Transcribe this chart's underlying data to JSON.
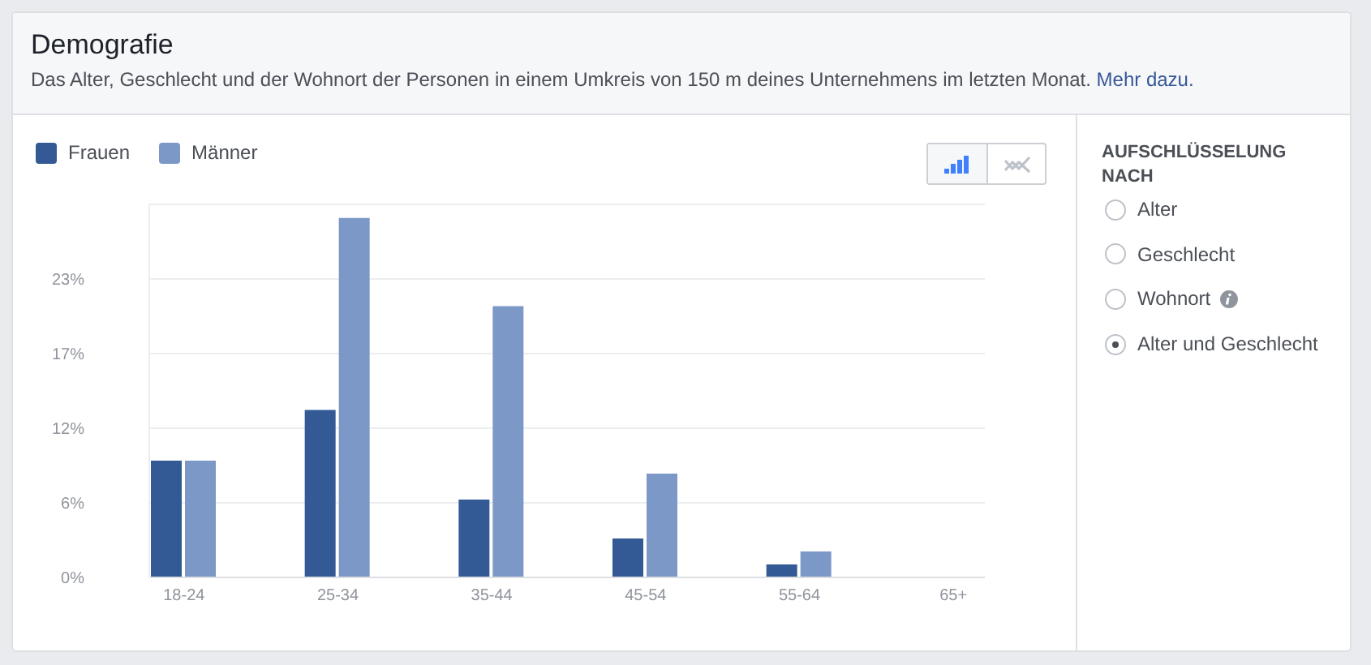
{
  "chart_data": [
    {
      "type": "bar",
      "title": "Demografie",
      "subtitle": "Das Alter, Geschlecht und der Wohnort der Personen in einem Umkreis von 150 m deines Unternehmens im letzten Monat.",
      "annotations": [
        "Mehr dazu."
      ],
      "categories": [
        "18-24",
        "25-34",
        "35-44",
        "45-54",
        "55-64",
        "65+"
      ],
      "series": [
        {
          "name": "Frauen",
          "color": "#335a95",
          "values": [
            9.0,
            12.9,
            6.0,
            3.0,
            1.0,
            0
          ]
        },
        {
          "name": "Männer",
          "color": "#7b98c6",
          "values": [
            9.0,
            27.7,
            20.9,
            8.0,
            2.0,
            0
          ]
        }
      ],
      "ylim": [
        0,
        28.75
      ],
      "yticks": [
        {
          "value": 0,
          "label": "0%"
        },
        {
          "value": 5.75,
          "label": "6%"
        },
        {
          "value": 11.5,
          "label": "12%"
        },
        {
          "value": 17.25,
          "label": "17%"
        },
        {
          "value": 23,
          "label": "23%"
        }
      ],
      "grid": "y",
      "legend": "top left"
    },
    {
      "type": "other",
      "title": "AUFSCHLÜSSELUNG NACH",
      "annotations": [
        "Alter",
        "Geschlecht",
        "Wohnort",
        "Alter und Geschlecht"
      ]
    }
  ]
}
